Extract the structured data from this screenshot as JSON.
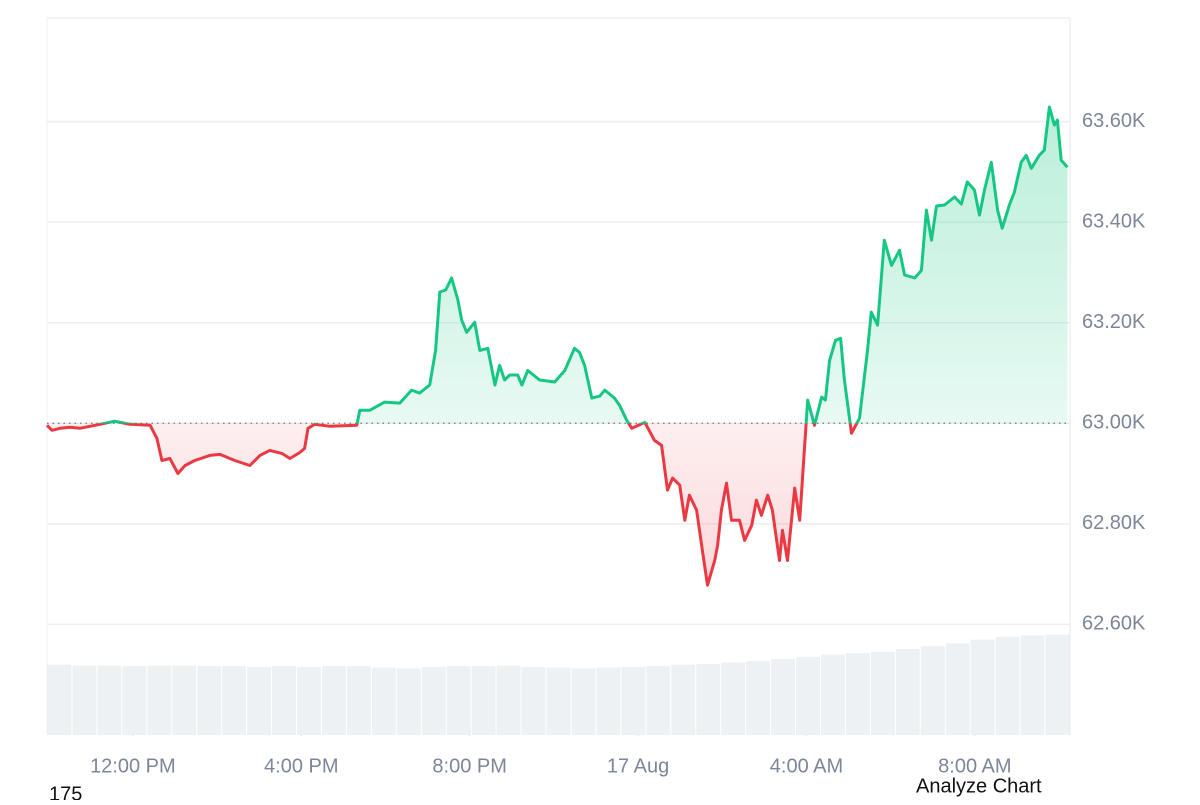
{
  "chart_data": {
    "type": "line",
    "x": [
      9.96,
      10.08,
      10.27,
      10.51,
      10.74,
      11.1,
      11.57,
      11.93,
      12.41,
      12.57,
      12.69,
      12.88,
      13.07,
      13.24,
      13.47,
      13.83,
      14.07,
      14.42,
      14.78,
      15.02,
      15.25,
      15.54,
      15.73,
      15.97,
      16.08,
      16.16,
      16.32,
      16.68,
      17.32,
      17.39,
      17.63,
      17.98,
      18.34,
      18.62,
      18.81,
      19.05,
      19.19,
      19.29,
      19.43,
      19.57,
      19.72,
      19.81,
      19.93,
      20.12,
      20.24,
      20.43,
      20.6,
      20.71,
      20.83,
      20.95,
      21.14,
      21.24,
      21.38,
      21.66,
      22.02,
      22.26,
      22.49,
      22.61,
      22.73,
      22.9,
      23.09,
      23.21,
      23.44,
      23.56,
      23.73,
      23.85,
      24.16,
      24.39,
      24.56,
      24.7,
      24.82,
      24.99,
      25.11,
      25.22,
      25.39,
      25.58,
      25.65,
      25.82,
      25.89,
      25.98,
      26.1,
      26.22,
      26.41,
      26.53,
      26.7,
      26.81,
      26.93,
      27.08,
      27.19,
      27.36,
      27.43,
      27.55,
      27.72,
      27.84,
      28.03,
      28.19,
      28.36,
      28.45,
      28.55,
      28.69,
      28.81,
      28.9,
      29.07,
      29.26,
      29.45,
      29.54,
      29.69,
      29.85,
      30.02,
      30.21,
      30.33,
      30.57,
      30.73,
      30.85,
      30.97,
      31.09,
      31.28,
      31.52,
      31.68,
      31.82,
      31.99,
      32.11,
      32.23,
      32.39,
      32.54,
      32.65,
      32.82,
      32.94,
      33.1,
      33.22,
      33.34,
      33.53,
      33.65,
      33.77,
      33.89,
      33.96,
      34.05,
      34.2
    ],
    "values": [
      62996,
      62986,
      62990,
      62992,
      62990,
      62996,
      63004,
      62998,
      62996,
      62970,
      62926,
      62930,
      62900,
      62916,
      62926,
      62936,
      62938,
      62926,
      62916,
      62936,
      62946,
      62940,
      62930,
      62942,
      62950,
      62990,
      62998,
      62994,
      62996,
      63026,
      63026,
      63042,
      63040,
      63066,
      63060,
      63076,
      63145,
      63261,
      63265,
      63289,
      63245,
      63205,
      63181,
      63201,
      63145,
      63149,
      63076,
      63115,
      63086,
      63096,
      63096,
      63076,
      63105,
      63086,
      63082,
      63105,
      63149,
      63141,
      63115,
      63050,
      63054,
      63066,
      63050,
      63036,
      63006,
      62990,
      63002,
      62966,
      62956,
      62867,
      62891,
      62877,
      62807,
      62857,
      62827,
      62717,
      62678,
      62727,
      62757,
      62827,
      62881,
      62807,
      62807,
      62767,
      62797,
      62847,
      62817,
      62857,
      62827,
      62727,
      62787,
      62727,
      62871,
      62807,
      63046,
      62996,
      63052,
      63046,
      63125,
      63165,
      63169,
      63086,
      62980,
      63010,
      63145,
      63221,
      63195,
      63364,
      63314,
      63344,
      63295,
      63289,
      63304,
      63424,
      63364,
      63432,
      63434,
      63450,
      63436,
      63480,
      63464,
      63414,
      63464,
      63519,
      63424,
      63388,
      63434,
      63460,
      63519,
      63533,
      63507,
      63533,
      63543,
      63629,
      63593,
      63603,
      63523,
      63509
    ],
    "baseline": 63000,
    "up_color": "#16c784",
    "down_color": "#ea3943",
    "volume": {
      "color": "#eef1f4",
      "y2lim": [
        0,
        100
      ],
      "values": [
        9.8,
        9.7,
        9.7,
        9.6,
        9.7,
        9.7,
        9.6,
        9.6,
        9.5,
        9.6,
        9.5,
        9.6,
        9.6,
        9.4,
        9.3,
        9.5,
        9.6,
        9.6,
        9.7,
        9.5,
        9.4,
        9.3,
        9.4,
        9.5,
        9.6,
        9.8,
        9.9,
        10.1,
        10.3,
        10.6,
        10.9,
        11.2,
        11.4,
        11.6,
        12.0,
        12.4,
        12.8,
        13.3,
        13.7,
        13.9,
        14.0
      ]
    },
    "xlim": [
      9.96,
      34.26
    ],
    "ylim": [
      62380,
      63806
    ],
    "xticks": [
      {
        "value": 12,
        "label": "12:00 PM"
      },
      {
        "value": 16,
        "label": "4:00 PM"
      },
      {
        "value": 20,
        "label": "8:00 PM"
      },
      {
        "value": 24,
        "label": "17 Aug"
      },
      {
        "value": 28,
        "label": "4:00 AM"
      },
      {
        "value": 32,
        "label": "8:00 AM"
      }
    ],
    "yticks": [
      {
        "value": 62600,
        "label": "62.60K"
      },
      {
        "value": 62800,
        "label": "62.80K"
      },
      {
        "value": 63000,
        "label": "63.00K"
      },
      {
        "value": 63200,
        "label": "63.20K"
      },
      {
        "value": 63400,
        "label": "63.40K"
      },
      {
        "value": 63600,
        "label": "63.60K"
      }
    ],
    "grid": true,
    "footer_left": "175",
    "footer_right": "Analyze Chart"
  }
}
